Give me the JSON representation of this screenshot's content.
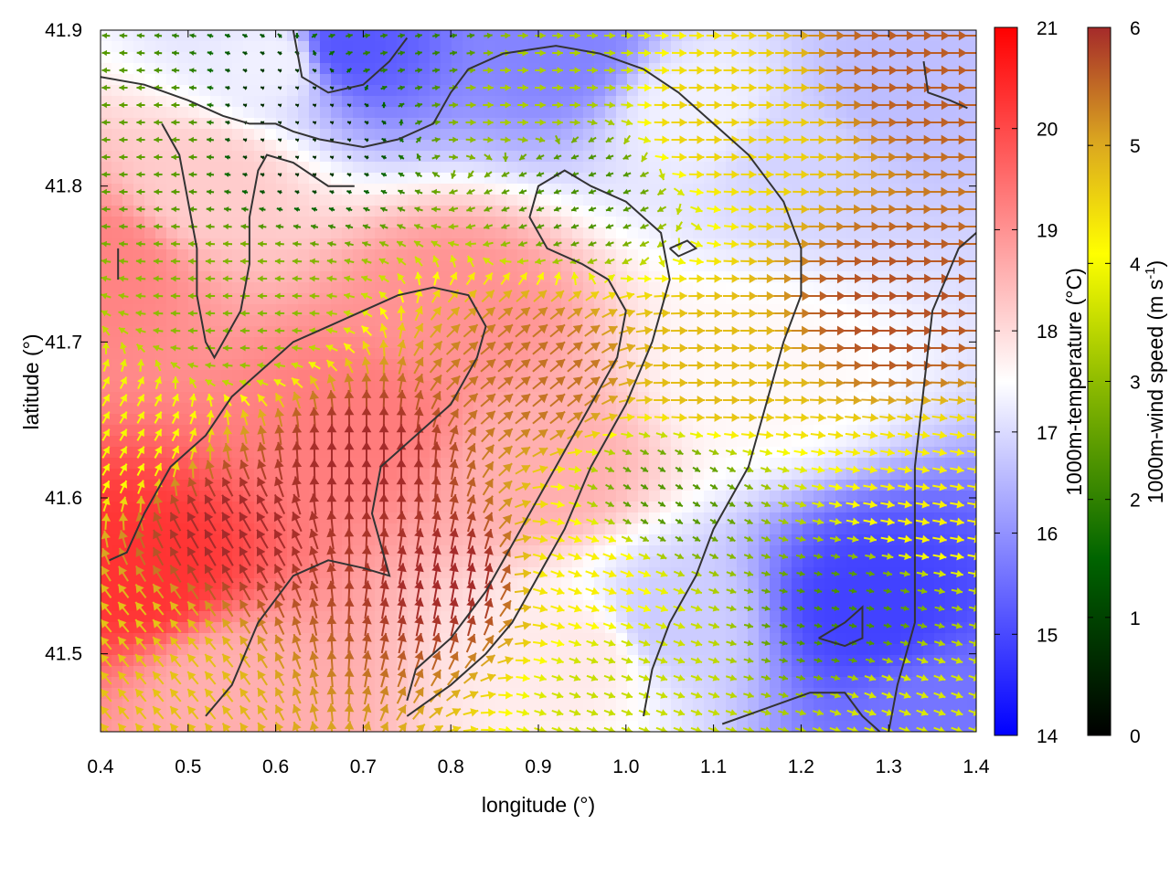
{
  "chart_data": {
    "type": "heatmap",
    "description_overlay": "wind vectors + contour",
    "xlabel": "longitude (°)",
    "ylabel": "latitude (°)",
    "xlim": [
      0.4,
      1.4
    ],
    "ylim": [
      41.45,
      41.9
    ],
    "xticks": [
      "0.4",
      "0.5",
      "0.6",
      "0.7",
      "0.8",
      "0.9",
      "1.0",
      "1.1",
      "1.2",
      "1.3",
      "1.4"
    ],
    "yticks": [
      "41.5",
      "41.6",
      "41.7",
      "41.8",
      "41.9"
    ],
    "grid": false,
    "colorbars": [
      {
        "label": "1000m-temperature (°C)",
        "range": [
          14,
          21
        ],
        "ticks": [
          "14",
          "15",
          "16",
          "17",
          "18",
          "19",
          "20",
          "21"
        ],
        "colors": [
          "#0000ff",
          "#ffffff",
          "#ff0000"
        ]
      },
      {
        "label_main": "1000m-wind speed (m s",
        "label_sup": "-1",
        "label_end": ")",
        "range": [
          0,
          6
        ],
        "ticks": [
          "0",
          "1",
          "2",
          "3",
          "4",
          "5",
          "6"
        ],
        "colors": [
          "#000000",
          "#006400",
          "#8fbc00",
          "#ffff00",
          "#daa520",
          "#a52a2a"
        ]
      }
    ],
    "temperature_field": {
      "description": "approximate 1000 m temperature (°C)",
      "centers": [
        {
          "lon": 0.6,
          "lat": 41.88,
          "t": 17.3
        },
        {
          "lon": 0.68,
          "lat": 41.89,
          "t": 15.2
        },
        {
          "lon": 0.93,
          "lat": 41.89,
          "t": 15.8
        },
        {
          "lon": 1.3,
          "lat": 41.86,
          "t": 16.6
        },
        {
          "lon": 1.08,
          "lat": 41.85,
          "t": 17.3
        },
        {
          "lon": 1.2,
          "lat": 41.82,
          "t": 16.9
        },
        {
          "lon": 1.28,
          "lat": 41.53,
          "t": 14.9
        },
        {
          "lon": 1.05,
          "lat": 41.52,
          "t": 16.8
        },
        {
          "lon": 1.36,
          "lat": 41.46,
          "t": 15.6
        },
        {
          "lon": 0.45,
          "lat": 41.55,
          "t": 20.3
        },
        {
          "lon": 0.7,
          "lat": 41.65,
          "t": 19.3
        },
        {
          "lon": 0.4,
          "lat": 41.75,
          "t": 19.2
        },
        {
          "lon": 0.8,
          "lat": 41.72,
          "t": 19.0
        },
        {
          "lon": 0.55,
          "lat": 41.48,
          "t": 18.6
        },
        {
          "lon": 0.52,
          "lat": 41.8,
          "t": 18.2
        },
        {
          "lon": 0.9,
          "lat": 41.62,
          "t": 18.6
        },
        {
          "lon": 1.15,
          "lat": 41.68,
          "t": 17.6
        },
        {
          "lon": 0.95,
          "lat": 41.5,
          "t": 17.8
        }
      ]
    },
    "wind_field": {
      "description": "approximate 1000 m wind speed (m/s) and direction (deg toward, 0=east, 90=north)",
      "centers": [
        {
          "lon": 0.45,
          "lat": 41.83,
          "speed": 2.0,
          "dir": 180
        },
        {
          "lon": 0.62,
          "lat": 41.84,
          "speed": 0.5,
          "dir": 160
        },
        {
          "lon": 0.75,
          "lat": 41.9,
          "speed": 1.6,
          "dir": 10
        },
        {
          "lon": 0.9,
          "lat": 41.86,
          "speed": 2.7,
          "dir": 0
        },
        {
          "lon": 1.1,
          "lat": 41.84,
          "speed": 4.2,
          "dir": 0
        },
        {
          "lon": 1.35,
          "lat": 41.88,
          "speed": 5.5,
          "dir": 0
        },
        {
          "lon": 1.3,
          "lat": 41.72,
          "speed": 5.6,
          "dir": 0
        },
        {
          "lon": 1.1,
          "lat": 41.68,
          "speed": 4.5,
          "dir": 0
        },
        {
          "lon": 0.95,
          "lat": 41.8,
          "speed": 1.8,
          "dir": 200
        },
        {
          "lon": 0.55,
          "lat": 41.72,
          "speed": 2.3,
          "dir": 180
        },
        {
          "lon": 0.7,
          "lat": 41.62,
          "speed": 6.0,
          "dir": 90
        },
        {
          "lon": 0.55,
          "lat": 41.58,
          "speed": 6.0,
          "dir": 120
        },
        {
          "lon": 0.8,
          "lat": 41.55,
          "speed": 6.0,
          "dir": 80
        },
        {
          "lon": 0.9,
          "lat": 41.68,
          "speed": 5.3,
          "dir": 40
        },
        {
          "lon": 0.45,
          "lat": 41.5,
          "speed": 4.4,
          "dir": 130
        },
        {
          "lon": 0.95,
          "lat": 41.55,
          "speed": 3.8,
          "dir": 340
        },
        {
          "lon": 1.05,
          "lat": 41.6,
          "speed": 1.9,
          "dir": 330
        },
        {
          "lon": 1.0,
          "lat": 41.48,
          "speed": 3.0,
          "dir": 340
        },
        {
          "lon": 1.25,
          "lat": 41.52,
          "speed": 1.8,
          "dir": 350
        },
        {
          "lon": 1.35,
          "lat": 41.6,
          "speed": 3.8,
          "dir": 350
        },
        {
          "lon": 1.32,
          "lat": 41.47,
          "speed": 3.2,
          "dir": 340
        },
        {
          "lon": 0.42,
          "lat": 41.64,
          "speed": 3.5,
          "dir": 60
        }
      ]
    },
    "contours": [
      {
        "name": "c1",
        "points": [
          [
            0.4,
            41.87
          ],
          [
            0.45,
            41.865
          ],
          [
            0.5,
            41.855
          ],
          [
            0.54,
            41.845
          ],
          [
            0.57,
            41.84
          ],
          [
            0.6,
            41.84
          ],
          [
            0.62,
            41.835
          ],
          [
            0.65,
            41.83
          ],
          [
            0.7,
            41.825
          ],
          [
            0.74,
            41.83
          ],
          [
            0.78,
            41.84
          ],
          [
            0.8,
            41.86
          ],
          [
            0.82,
            41.875
          ],
          [
            0.86,
            41.885
          ],
          [
            0.92,
            41.89
          ],
          [
            0.97,
            41.885
          ],
          [
            1.02,
            41.875
          ],
          [
            1.06,
            41.86
          ],
          [
            1.1,
            41.84
          ],
          [
            1.14,
            41.82
          ],
          [
            1.18,
            41.79
          ],
          [
            1.2,
            41.76
          ],
          [
            1.2,
            41.73
          ],
          [
            1.18,
            41.7
          ],
          [
            1.16,
            41.66
          ],
          [
            1.14,
            41.62
          ],
          [
            1.1,
            41.58
          ],
          [
            1.08,
            41.55
          ],
          [
            1.05,
            41.52
          ],
          [
            1.03,
            41.49
          ],
          [
            1.02,
            41.46
          ]
        ]
      },
      {
        "name": "c2",
        "points": [
          [
            0.62,
            41.9
          ],
          [
            0.63,
            41.87
          ],
          [
            0.66,
            41.86
          ],
          [
            0.7,
            41.865
          ],
          [
            0.73,
            41.88
          ],
          [
            0.75,
            41.895
          ]
        ]
      },
      {
        "name": "c3",
        "points": [
          [
            0.52,
            41.46
          ],
          [
            0.55,
            41.48
          ],
          [
            0.58,
            41.52
          ],
          [
            0.62,
            41.55
          ],
          [
            0.66,
            41.56
          ],
          [
            0.7,
            41.555
          ],
          [
            0.73,
            41.55
          ],
          [
            0.72,
            41.57
          ],
          [
            0.71,
            41.59
          ],
          [
            0.72,
            41.62
          ],
          [
            0.76,
            41.64
          ],
          [
            0.8,
            41.66
          ],
          [
            0.83,
            41.69
          ],
          [
            0.84,
            41.71
          ],
          [
            0.82,
            41.73
          ],
          [
            0.78,
            41.735
          ],
          [
            0.74,
            41.73
          ],
          [
            0.7,
            41.72
          ],
          [
            0.66,
            41.71
          ],
          [
            0.62,
            41.7
          ],
          [
            0.58,
            41.68
          ],
          [
            0.55,
            41.665
          ],
          [
            0.52,
            41.64
          ],
          [
            0.48,
            41.62
          ],
          [
            0.45,
            41.59
          ],
          [
            0.43,
            41.565
          ],
          [
            0.41,
            41.56
          ]
        ]
      },
      {
        "name": "c4",
        "points": [
          [
            0.75,
            41.46
          ],
          [
            0.8,
            41.48
          ],
          [
            0.84,
            41.5
          ],
          [
            0.87,
            41.52
          ],
          [
            0.9,
            41.55
          ],
          [
            0.93,
            41.58
          ],
          [
            0.96,
            41.62
          ],
          [
            1.0,
            41.66
          ],
          [
            1.03,
            41.7
          ],
          [
            1.05,
            41.74
          ],
          [
            1.04,
            41.77
          ],
          [
            1.0,
            41.79
          ],
          [
            0.96,
            41.8
          ],
          [
            0.93,
            41.81
          ],
          [
            0.9,
            41.8
          ],
          [
            0.89,
            41.78
          ],
          [
            0.91,
            41.76
          ],
          [
            0.95,
            41.75
          ],
          [
            0.98,
            41.74
          ],
          [
            1.0,
            41.72
          ],
          [
            0.99,
            41.69
          ],
          [
            0.96,
            41.66
          ],
          [
            0.93,
            41.63
          ],
          [
            0.9,
            41.6
          ],
          [
            0.87,
            41.57
          ],
          [
            0.84,
            41.54
          ],
          [
            0.8,
            41.51
          ],
          [
            0.76,
            41.49
          ],
          [
            0.75,
            41.47
          ]
        ]
      },
      {
        "name": "c5",
        "points": [
          [
            0.47,
            41.84
          ],
          [
            0.49,
            41.82
          ],
          [
            0.5,
            41.79
          ],
          [
            0.51,
            41.76
          ],
          [
            0.51,
            41.73
          ],
          [
            0.52,
            41.7
          ],
          [
            0.53,
            41.69
          ],
          [
            0.54,
            41.7
          ],
          [
            0.56,
            41.72
          ],
          [
            0.57,
            41.75
          ],
          [
            0.57,
            41.78
          ],
          [
            0.58,
            41.81
          ],
          [
            0.59,
            41.82
          ],
          [
            0.62,
            41.815
          ],
          [
            0.66,
            41.8
          ],
          [
            0.69,
            41.8
          ]
        ]
      },
      {
        "name": "c6",
        "points": [
          [
            1.11,
            41.455
          ],
          [
            1.16,
            41.465
          ],
          [
            1.21,
            41.475
          ],
          [
            1.25,
            41.475
          ],
          [
            1.27,
            41.46
          ],
          [
            1.29,
            41.45
          ]
        ]
      },
      {
        "name": "c7",
        "points": [
          [
            1.22,
            41.51
          ],
          [
            1.25,
            41.52
          ],
          [
            1.27,
            41.53
          ],
          [
            1.27,
            41.51
          ],
          [
            1.25,
            41.505
          ],
          [
            1.22,
            41.51
          ]
        ]
      },
      {
        "name": "c8",
        "points": [
          [
            1.3,
            41.45
          ],
          [
            1.31,
            41.48
          ],
          [
            1.33,
            41.52
          ],
          [
            1.33,
            41.57
          ],
          [
            1.33,
            41.62
          ],
          [
            1.34,
            41.67
          ],
          [
            1.35,
            41.72
          ],
          [
            1.38,
            41.76
          ],
          [
            1.4,
            41.77
          ]
        ]
      },
      {
        "name": "c9",
        "points": [
          [
            1.34,
            41.88
          ],
          [
            1.345,
            41.86
          ],
          [
            1.37,
            41.855
          ],
          [
            1.39,
            41.85
          ]
        ]
      },
      {
        "name": "c10",
        "points": [
          [
            0.42,
            41.76
          ],
          [
            0.42,
            41.74
          ]
        ]
      },
      {
        "name": "c11",
        "points": [
          [
            1.05,
            41.76
          ],
          [
            1.07,
            41.765
          ],
          [
            1.08,
            41.76
          ],
          [
            1.06,
            41.755
          ],
          [
            1.05,
            41.76
          ]
        ]
      }
    ]
  }
}
